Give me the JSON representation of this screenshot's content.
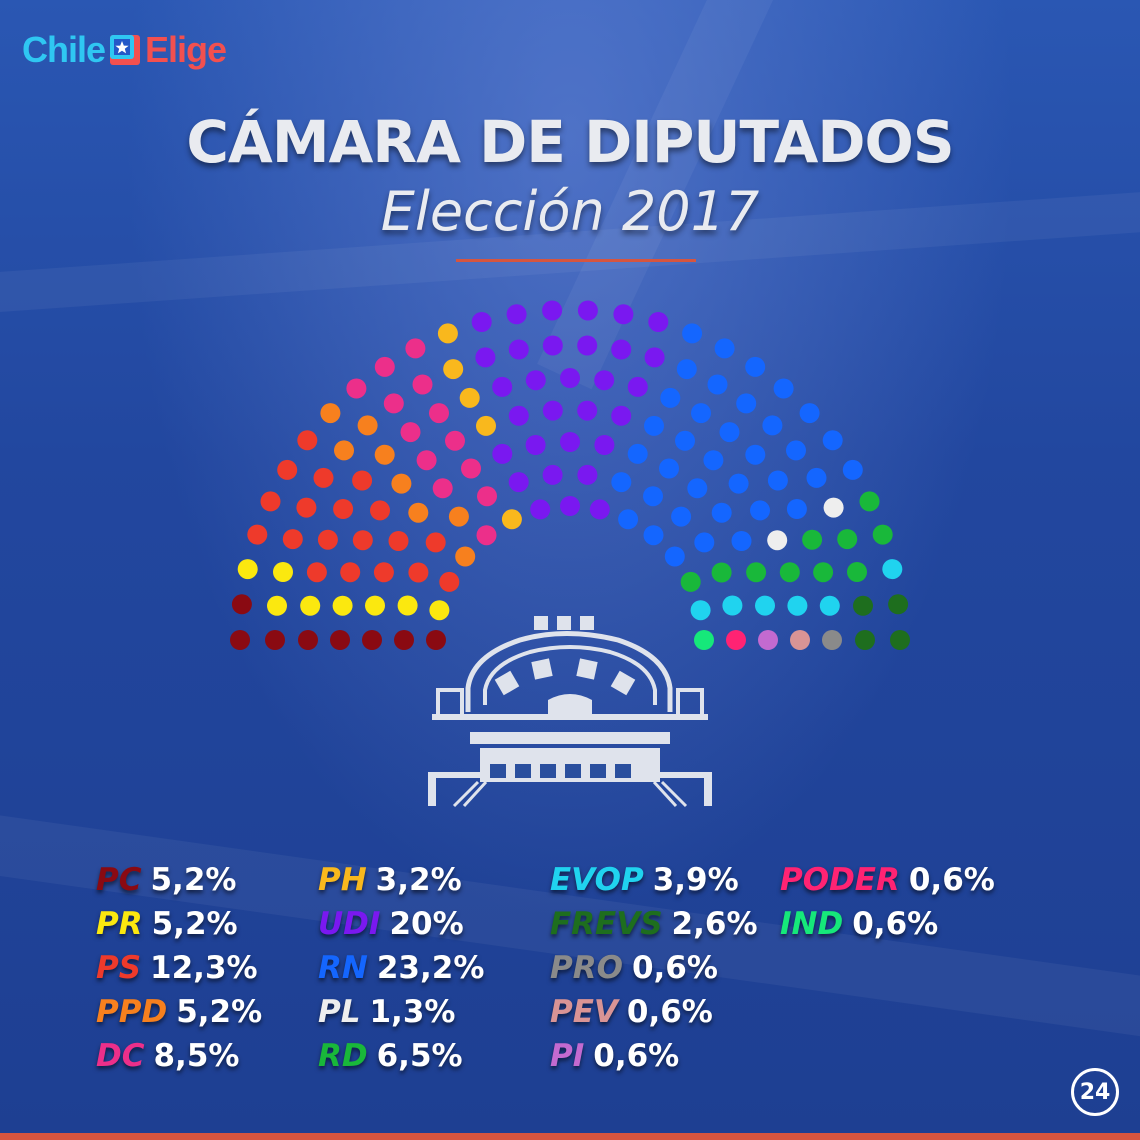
{
  "header": {
    "logo_left": "Chile",
    "logo_right": "Elige",
    "title": "CÁMARA DE DIPUTADOS",
    "subtitle": "Elección 2017"
  },
  "badge": "24",
  "colors": {
    "accent_rule": "#d6553f",
    "logo_left": "#2fc7f2",
    "logo_right": "#f2504f"
  },
  "chart_data": {
    "type": "parliament",
    "total_seats": 155,
    "parties": [
      {
        "name": "PC",
        "percent": "5,2%",
        "seats": 8,
        "color": "#8a0a12"
      },
      {
        "name": "PR",
        "percent": "5,2%",
        "seats": 8,
        "color": "#fbe80f"
      },
      {
        "name": "PS",
        "percent": "12,3%",
        "seats": 19,
        "color": "#ee3a2b"
      },
      {
        "name": "PPD",
        "percent": "5,2%",
        "seats": 8,
        "color": "#f7801e"
      },
      {
        "name": "DC",
        "percent": "8,5%",
        "seats": 13,
        "color": "#ec2f8a"
      },
      {
        "name": "PH",
        "percent": "3,2%",
        "seats": 5,
        "color": "#f9b81d"
      },
      {
        "name": "UDI",
        "percent": "20%",
        "seats": 31,
        "color": "#7a18f0"
      },
      {
        "name": "RN",
        "percent": "23,2%",
        "seats": 36,
        "color": "#1466ff"
      },
      {
        "name": "PL",
        "percent": "1,3%",
        "seats": 2,
        "color": "#eeeeee"
      },
      {
        "name": "RD",
        "percent": "6,5%",
        "seats": 10,
        "color": "#19b83a"
      },
      {
        "name": "EVOP",
        "percent": "3,9%",
        "seats": 6,
        "color": "#20d3ef"
      },
      {
        "name": "FREVS",
        "percent": "2,6%",
        "seats": 4,
        "color": "#1e6e1e"
      },
      {
        "name": "PRO",
        "percent": "0,6%",
        "seats": 1,
        "color": "#8a8a8a"
      },
      {
        "name": "PEV",
        "percent": "0,6%",
        "seats": 1,
        "color": "#d99495"
      },
      {
        "name": "PI",
        "percent": "0,6%",
        "seats": 1,
        "color": "#c36ad0"
      },
      {
        "name": "PODER",
        "percent": "0,6%",
        "seats": 1,
        "color": "#ff2373"
      },
      {
        "name": "IND",
        "percent": "0,6%",
        "seats": 1,
        "color": "#16e87a"
      }
    ]
  }
}
